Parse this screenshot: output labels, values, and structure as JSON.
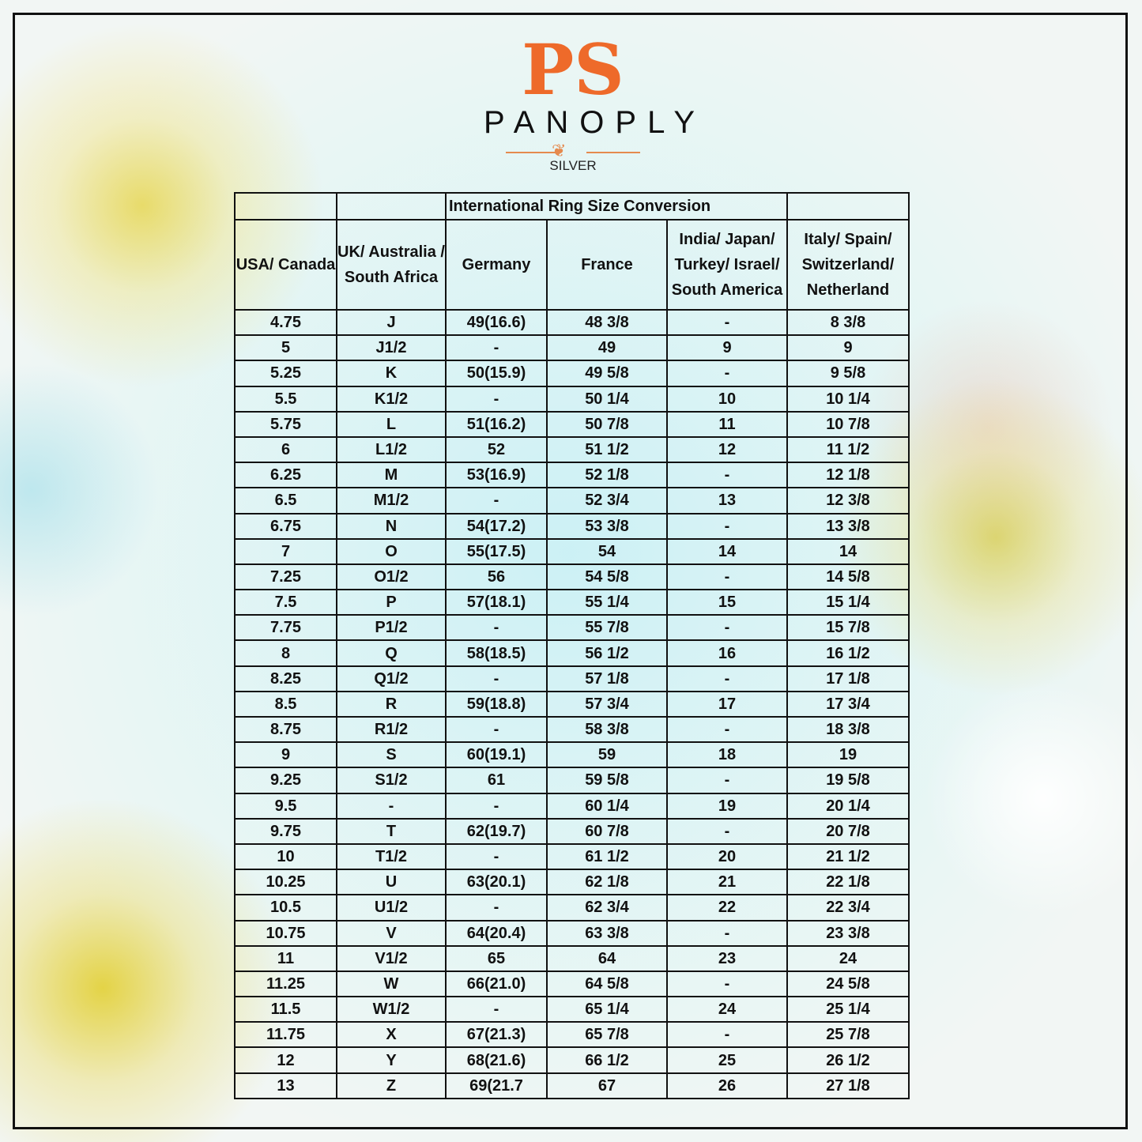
{
  "brand": {
    "monogram": "PS",
    "name": "PANOPLY",
    "sub": "SILVER",
    "accent": "#ee6a2a"
  },
  "table": {
    "title": "International Ring Size Conversion",
    "columns": [
      "USA/ Canada",
      "UK/ Australia / South Africa",
      "Germany",
      "France",
      "India/ Japan/ Turkey/ Israel/ South America",
      "Italy/ Spain/ Switzerland/ Netherland"
    ],
    "rows": [
      [
        "4.75",
        "J",
        "49(16.6)",
        "48 3/8",
        "-",
        "8 3/8"
      ],
      [
        "5",
        "J1/2",
        "-",
        "49",
        "9",
        "9"
      ],
      [
        "5.25",
        "K",
        "50(15.9)",
        "49 5/8",
        "-",
        "9 5/8"
      ],
      [
        "5.5",
        "K1/2",
        "-",
        "50 1/4",
        "10",
        "10 1/4"
      ],
      [
        "5.75",
        "L",
        "51(16.2)",
        "50 7/8",
        "11",
        "10 7/8"
      ],
      [
        "6",
        "L1/2",
        "52",
        "51 1/2",
        "12",
        "11 1/2"
      ],
      [
        "6.25",
        "M",
        "53(16.9)",
        "52 1/8",
        "-",
        "12 1/8"
      ],
      [
        "6.5",
        "M1/2",
        "-",
        "52 3/4",
        "13",
        "12 3/8"
      ],
      [
        "6.75",
        "N",
        "54(17.2)",
        "53 3/8",
        "-",
        "13 3/8"
      ],
      [
        "7",
        "O",
        "55(17.5)",
        "54",
        "14",
        "14"
      ],
      [
        "7.25",
        "O1/2",
        "56",
        "54 5/8",
        "-",
        "14 5/8"
      ],
      [
        "7.5",
        "P",
        "57(18.1)",
        "55 1/4",
        "15",
        "15 1/4"
      ],
      [
        "7.75",
        "P1/2",
        "-",
        "55 7/8",
        "-",
        "15 7/8"
      ],
      [
        "8",
        "Q",
        "58(18.5)",
        "56 1/2",
        "16",
        "16 1/2"
      ],
      [
        "8.25",
        "Q1/2",
        "-",
        "57 1/8",
        "-",
        "17 1/8"
      ],
      [
        "8.5",
        "R",
        "59(18.8)",
        "57 3/4",
        "17",
        "17 3/4"
      ],
      [
        "8.75",
        "R1/2",
        "-",
        "58 3/8",
        "-",
        "18 3/8"
      ],
      [
        "9",
        "S",
        "60(19.1)",
        "59",
        "18",
        "19"
      ],
      [
        "9.25",
        "S1/2",
        "61",
        "59 5/8",
        "-",
        "19 5/8"
      ],
      [
        "9.5",
        "-",
        "-",
        "60 1/4",
        "19",
        "20 1/4"
      ],
      [
        "9.75",
        "T",
        "62(19.7)",
        "60 7/8",
        "-",
        "20 7/8"
      ],
      [
        "10",
        "T1/2",
        "-",
        "61 1/2",
        "20",
        "21 1/2"
      ],
      [
        "10.25",
        "U",
        "63(20.1)",
        "62 1/8",
        "21",
        "22 1/8"
      ],
      [
        "10.5",
        "U1/2",
        "-",
        "62 3/4",
        "22",
        "22 3/4"
      ],
      [
        "10.75",
        "V",
        "64(20.4)",
        "63 3/8",
        "-",
        "23 3/8"
      ],
      [
        "11",
        "V1/2",
        "65",
        "64",
        "23",
        "24"
      ],
      [
        "11.25",
        "W",
        "66(21.0)",
        "64 5/8",
        "-",
        "24 5/8"
      ],
      [
        "11.5",
        "W1/2",
        "-",
        "65 1/4",
        "24",
        "25 1/4"
      ],
      [
        "11.75",
        "X",
        "67(21.3)",
        "65 7/8",
        "-",
        "25 7/8"
      ],
      [
        "12",
        "Y",
        "68(21.6)",
        "66 1/2",
        "25",
        "26 1/2"
      ],
      [
        "13",
        "Z",
        "69(21.7",
        "67",
        "26",
        "27 1/8"
      ]
    ]
  }
}
